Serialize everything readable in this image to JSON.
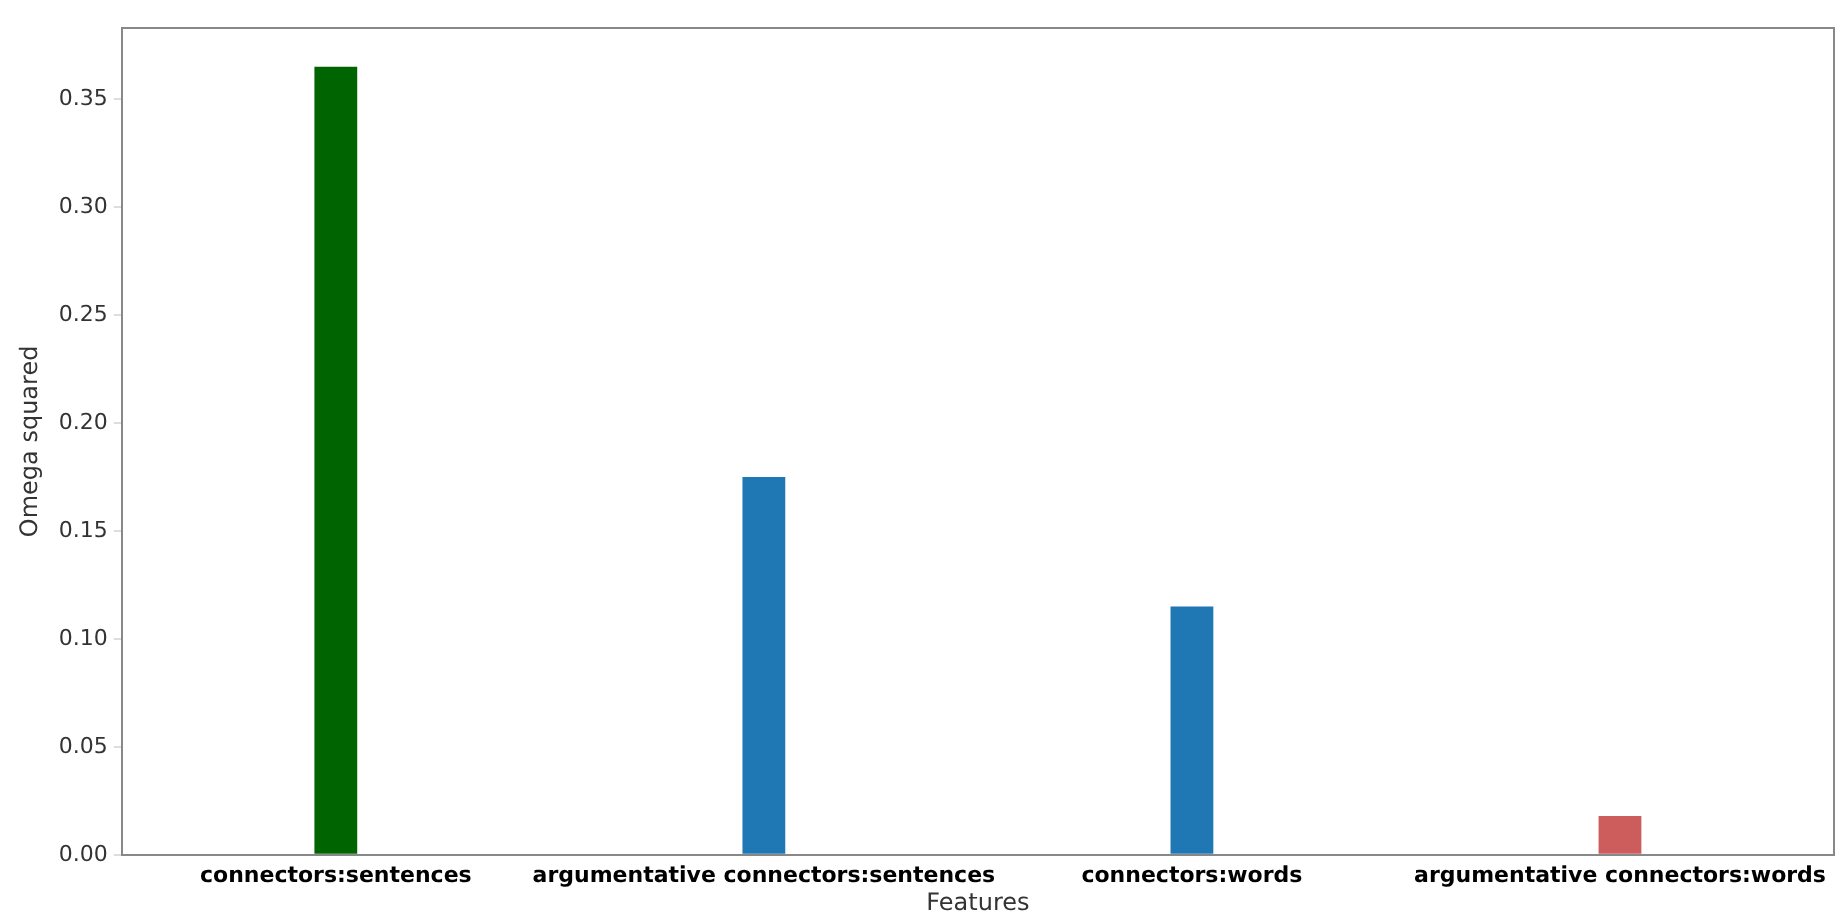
{
  "chart_data": {
    "type": "bar",
    "xlabel": "Features",
    "ylabel": "Omega squared",
    "categories": [
      "connectors:sentences",
      "argumentative connectors:sentences",
      "connectors:words",
      "argumentative connectors:words"
    ],
    "values": [
      0.365,
      0.175,
      0.115,
      0.018
    ],
    "colors": [
      "#006400",
      "#1f77b4",
      "#1f77b4",
      "#cd5c5c"
    ],
    "ylim": [
      0,
      0.383
    ],
    "yticks": [
      {
        "value": 0,
        "label": "0.00"
      },
      {
        "value": 0.05,
        "label": "0.05"
      },
      {
        "value": 0.1,
        "label": "0.10"
      },
      {
        "value": 0.15,
        "label": "0.15"
      },
      {
        "value": 0.2,
        "label": "0.20"
      },
      {
        "value": 0.25,
        "label": "0.25"
      },
      {
        "value": 0.3,
        "label": "0.30"
      },
      {
        "value": 0.35,
        "label": "0.35"
      }
    ],
    "grid": false,
    "legend": false
  }
}
